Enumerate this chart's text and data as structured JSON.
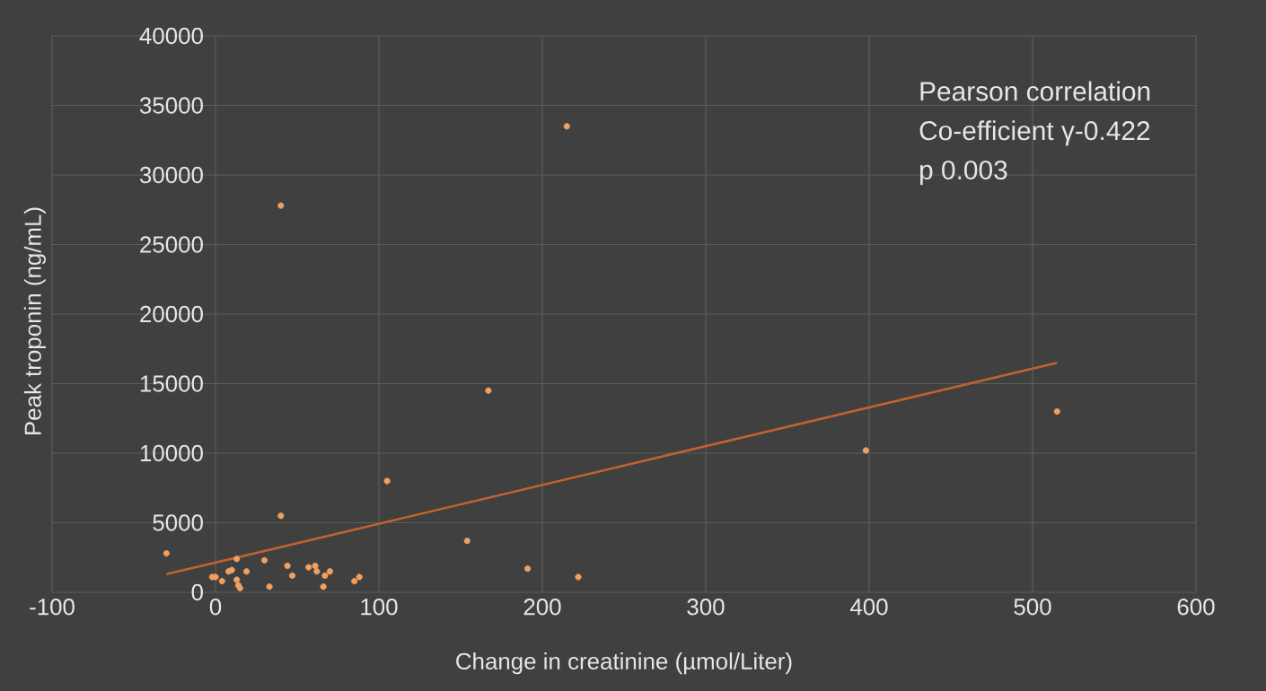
{
  "chart_data": {
    "type": "scatter",
    "xlabel": "Change in creatinine (µmol/Liter)",
    "ylabel": "Peak troponin (ng/mL)",
    "annotations": [
      "Pearson correlation",
      "Co-efficient γ-0.422",
      "p 0.003"
    ],
    "xlim": [
      -100,
      600
    ],
    "xticks": [
      -100,
      0,
      100,
      200,
      300,
      400,
      500,
      600
    ],
    "ylim": [
      0,
      40000
    ],
    "yticks": [
      0,
      5000,
      10000,
      15000,
      20000,
      25000,
      30000,
      35000,
      40000
    ],
    "grid": true,
    "series": [
      {
        "color": "#f0a060",
        "marker": "circle",
        "x": [
          -30,
          -2,
          0,
          4,
          8,
          10,
          13,
          13,
          14,
          15,
          19,
          30,
          33,
          40,
          40,
          44,
          47,
          57,
          61,
          62,
          66,
          67,
          70,
          85,
          88,
          105,
          154,
          167,
          191,
          215,
          222,
          398,
          515
        ],
        "values": [
          2800,
          1100,
          1100,
          800,
          1500,
          1600,
          2400,
          900,
          500,
          300,
          1500,
          2300,
          400,
          5500,
          27800,
          1900,
          1200,
          1800,
          1900,
          1500,
          400,
          1200,
          1500,
          800,
          1100,
          8000,
          3700,
          14500,
          1700,
          33500,
          1100,
          10200,
          13000
        ]
      },
      {
        "type": "line",
        "color": "#c0622f",
        "x": [
          -30,
          515
        ],
        "values": [
          1300,
          16500
        ]
      }
    ]
  }
}
